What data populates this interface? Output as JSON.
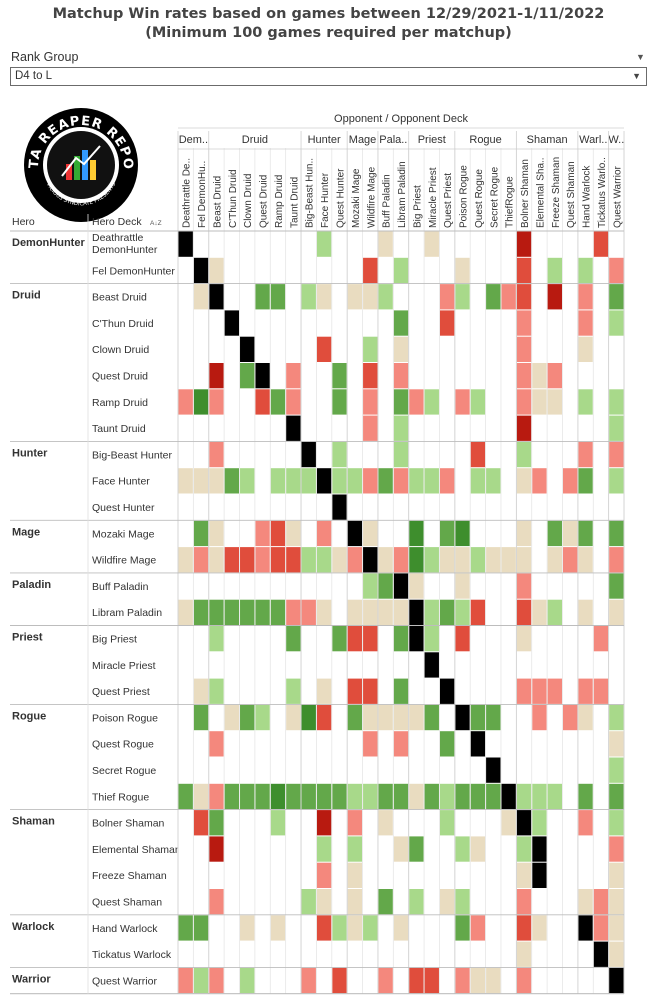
{
  "title_line1": "Matchup Win rates based on games between 12/29/2021-1/11/2022",
  "title_line2": "(Minimum 100 games required per matchup)",
  "filter": {
    "label": "Rank Group",
    "selected": "D4 to L"
  },
  "logo": {
    "top_text": "DATA REAPER REPORT",
    "bottom_text": "VICIOUS SYNDICATE PRESENTS"
  },
  "colors": {
    "dark_green": "#3e8e2d",
    "mid_green": "#63a84a",
    "light_green": "#a8d98a",
    "tan": "#e9dcc0",
    "light_red": "#f4887d",
    "mid_red": "#e04d3c",
    "dark_red": "#b81a10",
    "mirror": "#000000"
  },
  "chart_data": {
    "type": "heatmap",
    "header_title": "Opponent / Opponent Deck",
    "row_header_hero": "Hero",
    "row_header_deck": "Hero Deck",
    "column_groups": [
      {
        "label": "Dem..",
        "span": 2
      },
      {
        "label": "Druid",
        "span": 6
      },
      {
        "label": "Hunter",
        "span": 3
      },
      {
        "label": "Mage",
        "span": 2
      },
      {
        "label": "Pala..",
        "span": 2
      },
      {
        "label": "Priest",
        "span": 3
      },
      {
        "label": "Rogue",
        "span": 4
      },
      {
        "label": "Shaman",
        "span": 4
      },
      {
        "label": "Warl..",
        "span": 2
      },
      {
        "label": "W..",
        "span": 1
      }
    ],
    "columns": [
      "Deathrattle De..",
      "Fel DemonHu..",
      "Beast Druid",
      "C'Thun Druid",
      "Clown Druid",
      "Quest Druid",
      "Ramp Druid",
      "Taunt Druid",
      "Big-Beast Hun..",
      "Face Hunter",
      "Quest Hunter",
      "Mozaki Mage",
      "Wildfire Mage",
      "Buff Paladin",
      "Libram Paladin",
      "Big Priest",
      "Miracle Priest",
      "Quest Priest",
      "Poison Rogue",
      "Quest Rogue",
      "Secret Rogue",
      "ThiefRogue",
      "Bolner Shaman",
      "Elemental Sha..",
      "Freeze Shaman",
      "Quest Shaman",
      "Hand Warlock",
      "Tickatus Warlo..",
      "Quest Warrior"
    ],
    "row_groups": [
      {
        "hero": "DemonHunter",
        "decks": [
          "Deathrattle DemonHunter",
          "Fel DemonHunter"
        ]
      },
      {
        "hero": "Druid",
        "decks": [
          "Beast Druid",
          "C'Thun Druid",
          "Clown Druid",
          "Quest Druid",
          "Ramp Druid",
          "Taunt Druid"
        ]
      },
      {
        "hero": "Hunter",
        "decks": [
          "Big-Beast Hunter",
          "Face Hunter",
          "Quest Hunter"
        ]
      },
      {
        "hero": "Mage",
        "decks": [
          "Mozaki Mage",
          "Wildfire Mage"
        ]
      },
      {
        "hero": "Paladin",
        "decks": [
          "Buff Paladin",
          "Libram Paladin"
        ]
      },
      {
        "hero": "Priest",
        "decks": [
          "Big Priest",
          "Miracle Priest",
          "Quest Priest"
        ]
      },
      {
        "hero": "Rogue",
        "decks": [
          "Poison Rogue",
          "Quest Rogue",
          "Secret Rogue",
          "Thief Rogue"
        ]
      },
      {
        "hero": "Shaman",
        "decks": [
          "Bolner Shaman",
          "Elemental Shaman",
          "Freeze Shaman",
          "Quest Shaman"
        ]
      },
      {
        "hero": "Warlock",
        "decks": [
          "Hand Warlock",
          "Tickatus Warlock"
        ]
      },
      {
        "hero": "Warrior",
        "decks": [
          "Quest Warrior"
        ]
      }
    ],
    "legend_codes": {
      "0": "no data",
      "1": "dark_green",
      "2": "mid_green",
      "3": "light_green",
      "4": "tan",
      "5": "light_red",
      "6": "mid_red",
      "7": "dark_red",
      "9": "mirror"
    },
    "matrix": [
      "90000000030004004000007000060",
      "09400000000060300040006030305",
      "04900220340443000530256070502",
      "00090000000000200600005000503",
      "00009000060030400000005000400",
      "00702905002060500000005450000",
      "51500625002050253053005440303",
      "00000009000050300000007000003",
      "00500000903000300006003000505",
      "44423033393352533503304505203",
      "00000000009000000000000000000",
      "02400564050940010210004024202",
      "45466566334594513443444045405",
      "00000000000032940040005000002",
      "42222225540444493236006430404",
      "00300002002660293060004000050",
      "00000000000000009000000000000",
      "04300003040660200900005550550",
      "02042304160244442092200505403",
      "00500000000050500209000000004",
      "00000000000000000000900000003",
      "24522212222332242322293330202",
      "06200030070504000300049300503",
      "00700000030300420034003900005",
      "00000000050400000000004900004",
      "00500000340402030430005000454",
      "22004040063430400025006400954",
      "00000000000000000000004000094",
      "53503000506005066054405000009"
    ]
  }
}
